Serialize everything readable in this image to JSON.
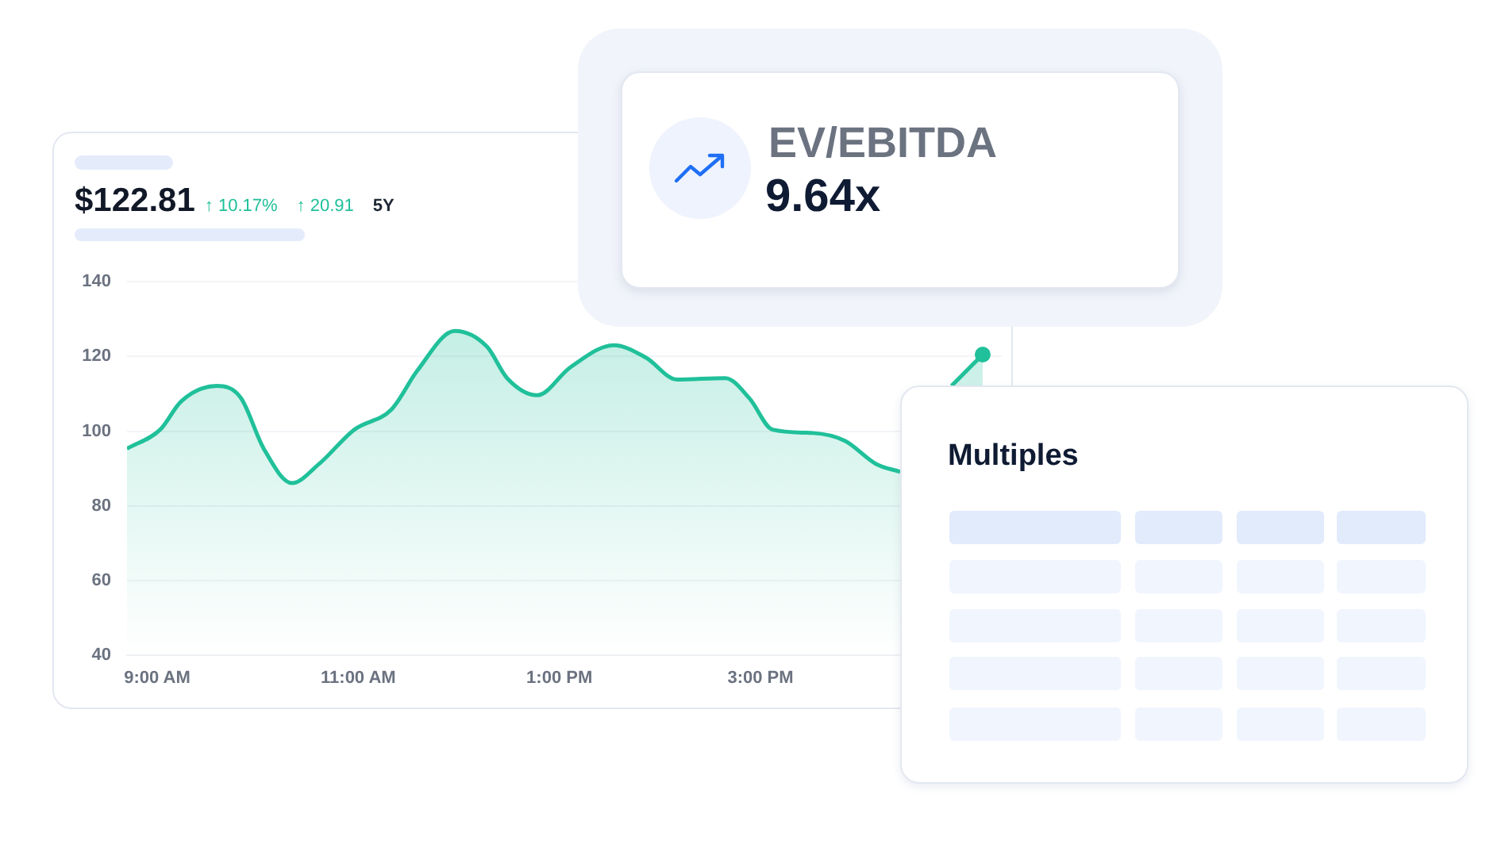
{
  "chart_data": [
    {
      "type": "area",
      "title": "$122.81",
      "annotations": [
        "↑ 10.17%",
        "↑ 20.91",
        "5Y"
      ],
      "x": [
        8.7,
        9.03,
        9.24,
        9.59,
        9.83,
        10.06,
        10.34,
        10.61,
        10.96,
        11.33,
        11.59,
        11.96,
        12.28,
        12.48,
        12.78,
        13.11,
        13.54,
        13.86,
        14.17,
        14.65,
        14.89,
        15.12,
        15.52,
        15.84,
        16.15,
        16.39,
        16.6,
        16.9,
        17.21
      ],
      "series": [
        {
          "color": "#20c09a",
          "values": [
            95.3,
            100.4,
            108,
            112.1,
            109,
            95.3,
            86.1,
            91.2,
            100.4,
            105.8,
            116.3,
            126.8,
            122.6,
            114.2,
            109.6,
            117.1,
            123,
            119.7,
            113.8,
            114.2,
            108.8,
            100.4,
            99.5,
            97.4,
            91.2,
            89.1,
            null,
            112.1,
            120.5
          ]
        }
      ],
      "xlim": [
        8.7,
        17.4
      ],
      "xticks": [
        {
          "value": 9,
          "label": "9:00 AM"
        },
        {
          "value": 11,
          "label": "11:00 AM"
        },
        {
          "value": 13,
          "label": "1:00 PM"
        },
        {
          "value": 15,
          "label": "3:00 PM"
        }
      ],
      "ylim": [
        40,
        140
      ],
      "yticks": [
        40,
        60,
        80,
        100,
        120,
        140
      ],
      "grid": "y"
    },
    {
      "type": "other",
      "title": "EV/EBITDA",
      "annotations": [
        "9.64x"
      ]
    },
    {
      "type": "other",
      "title": "Multiples"
    }
  ]
}
